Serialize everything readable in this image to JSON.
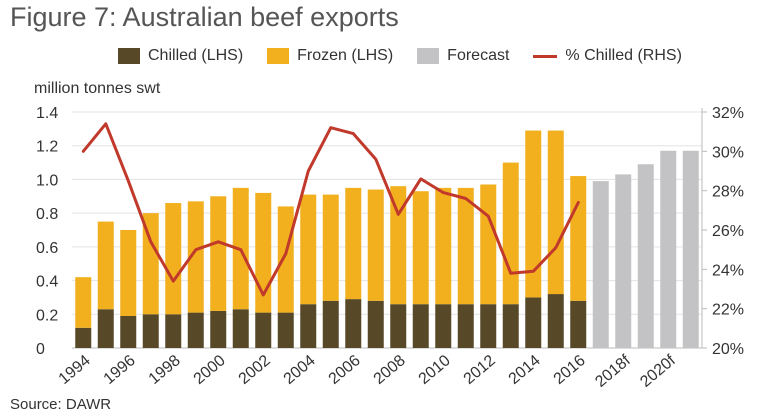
{
  "title": "Figure 7: Australian beef exports",
  "source": "Source: DAWR",
  "colors": {
    "chilled": "#574928",
    "frozen": "#f2b01e",
    "forecast": "#c3c3c6",
    "pct_line": "#c0392b",
    "grid": "#e3e3e3",
    "axis": "#bbbbbb"
  },
  "chart_data": {
    "type": "bar",
    "ylabel": "million tonnes swt",
    "ylim": [
      0,
      1.4
    ],
    "y_ticks": [
      "0",
      "0.2",
      "0.4",
      "0.6",
      "0.8",
      "1.0",
      "1.2",
      "1.4"
    ],
    "y2lim": [
      20,
      32
    ],
    "y2_ticks": [
      "20%",
      "22%",
      "24%",
      "26%",
      "28%",
      "30%",
      "32%"
    ],
    "legend": [
      "Chilled (LHS)",
      "Frozen (LHS)",
      "Forecast",
      "% Chilled (RHS)"
    ],
    "legend_position": "top",
    "grid": true,
    "categories": [
      "1994",
      "1995",
      "1996",
      "1997",
      "1998",
      "1999",
      "2000",
      "2001",
      "2002",
      "2003",
      "2004",
      "2005",
      "2006",
      "2007",
      "2008",
      "2009",
      "2010",
      "2011",
      "2012",
      "2013",
      "2014",
      "2015",
      "2016",
      "2017f",
      "2018f",
      "2019f",
      "2020f",
      "2021f"
    ],
    "x_tick_labels": [
      "1994",
      "",
      "1996",
      "",
      "1998",
      "",
      "2000",
      "",
      "2002",
      "",
      "2004",
      "",
      "2006",
      "",
      "2008",
      "",
      "2010",
      "",
      "2012",
      "",
      "2014",
      "",
      "2016",
      "",
      "2018f",
      "",
      "2020f",
      ""
    ],
    "series": [
      {
        "name": "Chilled (LHS)",
        "kind": "bar",
        "values": [
          0.12,
          0.23,
          0.19,
          0.2,
          0.2,
          0.21,
          0.22,
          0.23,
          0.21,
          0.21,
          0.26,
          0.28,
          0.29,
          0.28,
          0.26,
          0.26,
          0.26,
          0.26,
          0.26,
          0.26,
          0.3,
          0.32,
          0.28,
          null,
          null,
          null,
          null,
          null
        ]
      },
      {
        "name": "Frozen (LHS)",
        "kind": "bar",
        "values": [
          0.3,
          0.52,
          0.51,
          0.6,
          0.66,
          0.66,
          0.68,
          0.72,
          0.71,
          0.63,
          0.65,
          0.63,
          0.66,
          0.66,
          0.7,
          0.67,
          0.69,
          0.69,
          0.71,
          0.84,
          0.99,
          0.97,
          0.74,
          null,
          null,
          null,
          null,
          null
        ]
      },
      {
        "name": "Forecast",
        "kind": "bar",
        "values": [
          null,
          null,
          null,
          null,
          null,
          null,
          null,
          null,
          null,
          null,
          null,
          null,
          null,
          null,
          null,
          null,
          null,
          null,
          null,
          null,
          null,
          null,
          null,
          0.99,
          1.03,
          1.09,
          1.17,
          1.17
        ]
      },
      {
        "name": "% Chilled (RHS)",
        "kind": "line",
        "axis": "right",
        "values": [
          30.0,
          31.4,
          28.5,
          25.4,
          23.4,
          25.0,
          25.4,
          25.0,
          22.7,
          24.8,
          29.0,
          31.2,
          30.9,
          29.6,
          26.8,
          28.6,
          27.9,
          27.6,
          26.7,
          23.8,
          23.9,
          25.1,
          27.4,
          null,
          null,
          null,
          null,
          null
        ]
      }
    ]
  }
}
